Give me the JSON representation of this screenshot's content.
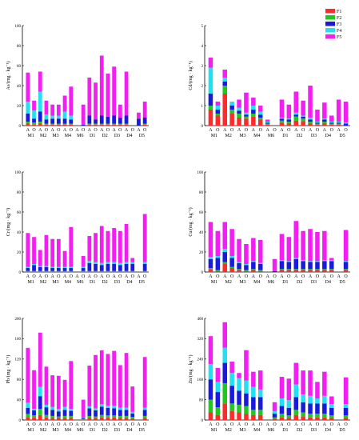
{
  "legend": {
    "entries": [
      {
        "name": "F1",
        "color": "#ff2a2a"
      },
      {
        "name": "F2",
        "color": "#1fc81f"
      },
      {
        "name": "F3",
        "color": "#1a1adc"
      },
      {
        "name": "F4",
        "color": "#22e0f0"
      },
      {
        "name": "F5",
        "color": "#f21ef2"
      }
    ]
  },
  "chart_data": [
    {
      "type": "bar",
      "stacked": true,
      "ylabel": "As/(mg · kg⁻¹)",
      "ylim": [
        0,
        100
      ],
      "yticks": [
        0,
        20,
        40,
        60,
        80,
        100
      ],
      "bar_labels": [
        "A",
        "O",
        "A",
        "O",
        "A",
        "O",
        "A",
        "O",
        "A",
        "O",
        "A",
        "O",
        "A",
        "O",
        "A",
        "O",
        "A",
        "O",
        "A",
        "O"
      ],
      "group_labels": [
        "M1",
        "M2",
        "M3",
        "M4",
        "M6",
        "D1",
        "D2",
        "D3",
        "D4",
        "D5"
      ],
      "series": [
        {
          "name": "F1",
          "values": [
            2,
            1,
            2,
            1,
            1,
            1,
            1,
            1,
            0,
            0,
            1,
            1,
            1,
            1,
            1,
            1,
            1,
            0,
            0,
            1
          ]
        },
        {
          "name": "F2",
          "values": [
            2,
            2,
            2,
            1,
            1,
            1,
            1,
            1,
            0,
            0,
            1,
            1,
            1,
            1,
            1,
            1,
            1,
            0,
            0,
            1
          ]
        },
        {
          "name": "F3",
          "values": [
            8,
            4,
            10,
            4,
            5,
            5,
            5,
            4,
            0,
            1,
            8,
            4,
            8,
            7,
            8,
            6,
            8,
            0,
            7,
            6
          ]
        },
        {
          "name": "F4",
          "values": [
            12,
            8,
            20,
            5,
            3,
            3,
            7,
            4,
            0,
            0,
            0,
            0,
            0,
            0,
            0,
            0,
            0,
            0,
            0,
            0
          ]
        },
        {
          "name": "F5",
          "values": [
            29,
            10,
            20,
            14,
            11,
            11,
            16,
            29,
            0,
            20,
            38,
            37,
            60,
            43,
            49,
            13,
            44,
            0,
            6,
            16
          ]
        }
      ]
    },
    {
      "type": "bar",
      "stacked": true,
      "ylabel": "Cd/(mg · kg⁻¹)",
      "ylim": [
        0,
        5
      ],
      "yticks": [
        0,
        1,
        2,
        3,
        4,
        5
      ],
      "bar_labels": [
        "A",
        "O",
        "A",
        "O",
        "A",
        "O",
        "A",
        "O",
        "A",
        "O",
        "A",
        "O",
        "A",
        "O",
        "A",
        "O",
        "A",
        "O",
        "A",
        "O"
      ],
      "group_labels": [
        "M1",
        "M2",
        "M3",
        "M4",
        "M6",
        "D1",
        "D2",
        "D3",
        "D4",
        "D5"
      ],
      "series": [
        {
          "name": "F1",
          "values": [
            0.8,
            0.5,
            1.6,
            0.6,
            0.4,
            0.35,
            0.45,
            0.3,
            0.05,
            0,
            0.15,
            0.1,
            0.25,
            0.2,
            0.1,
            0.05,
            0.1,
            0.05,
            0.05,
            0
          ]
        },
        {
          "name": "F2",
          "values": [
            0.2,
            0.1,
            0.4,
            0.2,
            0.2,
            0.1,
            0.15,
            0.1,
            0.05,
            0,
            0.1,
            0.1,
            0.2,
            0.15,
            0.1,
            0.05,
            0.1,
            0.05,
            0.05,
            0
          ]
        },
        {
          "name": "F3",
          "values": [
            0.6,
            0.2,
            0.2,
            0.2,
            0.15,
            0.1,
            0.2,
            0.15,
            0.05,
            0,
            0.1,
            0.1,
            0.1,
            0.1,
            0.1,
            0.05,
            0.1,
            0.05,
            0.05,
            0.1
          ]
        },
        {
          "name": "F4",
          "values": [
            1.3,
            0.2,
            0.2,
            0.2,
            0.15,
            0.1,
            0.2,
            0.15,
            0.05,
            0,
            0.05,
            0.05,
            0.1,
            0.05,
            0.1,
            0.05,
            0.05,
            0.05,
            0.05,
            0.05
          ]
        },
        {
          "name": "F5",
          "values": [
            0.5,
            0.2,
            0.4,
            0.0,
            0.4,
            1.0,
            0.4,
            0.3,
            0.1,
            0,
            0.9,
            0.7,
            1.05,
            0.75,
            1.6,
            0.6,
            0.8,
            0.3,
            1.1,
            1.05
          ]
        }
      ]
    },
    {
      "type": "bar",
      "stacked": true,
      "ylabel": "Cr/(mg · kg⁻¹)",
      "ylim": [
        0,
        100
      ],
      "yticks": [
        0,
        20,
        40,
        60,
        80,
        100
      ],
      "bar_labels": [
        "A",
        "O",
        "A",
        "O",
        "A",
        "O",
        "A",
        "O",
        "A",
        "O",
        "A",
        "O",
        "A",
        "O",
        "A",
        "O",
        "A",
        "O",
        "A",
        "O"
      ],
      "group_labels": [
        "M1",
        "M2",
        "M3",
        "M4",
        "M6",
        "D1",
        "D2",
        "D3",
        "D4",
        "D5"
      ],
      "series": [
        {
          "name": "F1",
          "values": [
            0.5,
            0.5,
            0.5,
            0.5,
            0.5,
            0.5,
            0.5,
            0.5,
            0,
            0.5,
            0.5,
            0.5,
            0.5,
            0.5,
            0.5,
            0.5,
            0.5,
            0.5,
            0,
            0.5
          ]
        },
        {
          "name": "F2",
          "values": [
            0.5,
            0.5,
            0.5,
            0.5,
            0.5,
            0.5,
            0.5,
            0.5,
            0,
            0.5,
            0.5,
            0.5,
            0.5,
            0.5,
            0.5,
            0.5,
            0.5,
            0.5,
            0,
            0.5
          ]
        },
        {
          "name": "F3",
          "values": [
            3,
            6,
            4,
            4,
            3,
            3,
            3,
            3,
            0,
            3,
            8,
            7,
            6,
            7,
            7,
            6,
            7,
            7,
            0,
            7
          ]
        },
        {
          "name": "F4",
          "values": [
            1,
            1,
            1,
            1,
            1,
            1,
            1,
            1,
            0,
            1,
            2,
            2,
            2,
            2,
            2,
            2,
            2,
            2,
            0,
            2
          ]
        },
        {
          "name": "F5",
          "values": [
            34,
            27,
            16,
            31,
            28,
            28,
            16,
            40,
            0,
            11,
            25,
            29,
            37,
            31,
            34,
            32,
            38,
            4,
            0,
            48
          ]
        }
      ]
    },
    {
      "type": "bar",
      "stacked": true,
      "ylabel": "Cu/(mg · kg⁻¹)",
      "ylim": [
        0,
        100
      ],
      "yticks": [
        0,
        20,
        40,
        60,
        80,
        100
      ],
      "bar_labels": [
        "A",
        "O",
        "A",
        "O",
        "A",
        "O",
        "A",
        "O",
        "A",
        "O",
        "A",
        "O",
        "A",
        "O",
        "A",
        "O",
        "A",
        "O",
        "A",
        "O"
      ],
      "group_labels": [
        "M1",
        "M2",
        "M3",
        "M4",
        "M6",
        "D1",
        "D2",
        "D3",
        "D4",
        "D5"
      ],
      "series": [
        {
          "name": "F1",
          "values": [
            3,
            1,
            8,
            4,
            2,
            1,
            2,
            1,
            0,
            0,
            2,
            2,
            2,
            2,
            2,
            2,
            2,
            2,
            0,
            2
          ]
        },
        {
          "name": "F2",
          "values": [
            1,
            1,
            2,
            1,
            1,
            1,
            1,
            1,
            0,
            0,
            1,
            1,
            1,
            1,
            1,
            1,
            1,
            1,
            0,
            1
          ]
        },
        {
          "name": "F3",
          "values": [
            9,
            12,
            10,
            9,
            6,
            5,
            7,
            6,
            0,
            1,
            8,
            7,
            10,
            8,
            7,
            7,
            8,
            8,
            0,
            7
          ]
        },
        {
          "name": "F4",
          "values": [
            2,
            2,
            3,
            2,
            1,
            1,
            1,
            1,
            0,
            0,
            1,
            1,
            1,
            1,
            1,
            1,
            1,
            1,
            0,
            1
          ]
        },
        {
          "name": "F5",
          "values": [
            35,
            25,
            27,
            27,
            23,
            20,
            23,
            23,
            0,
            12,
            26,
            24,
            37,
            29,
            32,
            29,
            29,
            2,
            0,
            31
          ]
        }
      ]
    },
    {
      "type": "bar",
      "stacked": true,
      "ylabel": "Pb/(mg · kg⁻¹)",
      "ylim": [
        0,
        200
      ],
      "yticks": [
        0,
        40,
        80,
        120,
        160,
        200
      ],
      "bar_labels": [
        "A",
        "O",
        "A",
        "O",
        "A",
        "O",
        "A",
        "O",
        "A",
        "O",
        "A",
        "O",
        "A",
        "O",
        "A",
        "O",
        "A",
        "O",
        "A",
        "O"
      ],
      "group_labels": [
        "M1",
        "M2",
        "M3",
        "M4",
        "M6",
        "D1",
        "D2",
        "D3",
        "D4",
        "D5"
      ],
      "series": [
        {
          "name": "F1",
          "values": [
            6,
            5,
            10,
            5,
            4,
            4,
            4,
            4,
            0,
            1,
            4,
            4,
            5,
            5,
            5,
            4,
            4,
            3,
            0,
            4
          ]
        },
        {
          "name": "F2",
          "values": [
            6,
            4,
            12,
            5,
            4,
            3,
            4,
            4,
            0,
            1,
            4,
            3,
            5,
            4,
            4,
            4,
            4,
            3,
            0,
            4
          ]
        },
        {
          "name": "F3",
          "values": [
            12,
            10,
            25,
            15,
            12,
            10,
            12,
            10,
            0,
            2,
            15,
            12,
            16,
            15,
            14,
            12,
            12,
            7,
            0,
            12
          ]
        },
        {
          "name": "F4",
          "values": [
            10,
            3,
            18,
            5,
            6,
            5,
            6,
            4,
            0,
            1,
            4,
            4,
            5,
            4,
            5,
            4,
            4,
            3,
            0,
            4
          ]
        },
        {
          "name": "F5",
          "values": [
            108,
            76,
            107,
            75,
            62,
            65,
            53,
            94,
            0,
            35,
            80,
            105,
            106,
            102,
            108,
            84,
            108,
            50,
            0,
            100
          ]
        }
      ]
    },
    {
      "type": "bar",
      "stacked": true,
      "ylabel": "Zn/(mg · kg⁻¹)",
      "ylim": [
        0,
        400
      ],
      "yticks": [
        0,
        80,
        160,
        240,
        320,
        400
      ],
      "bar_labels": [
        "A",
        "O",
        "A",
        "O",
        "A",
        "O",
        "A",
        "O",
        "A",
        "O",
        "A",
        "O",
        "A",
        "O",
        "A",
        "O",
        "A",
        "O",
        "A",
        "O"
      ],
      "group_labels": [
        "M1",
        "M2",
        "M3",
        "M4",
        "M6",
        "D1",
        "D2",
        "D3",
        "D4",
        "D5"
      ],
      "series": [
        {
          "name": "F1",
          "values": [
            30,
            20,
            65,
            35,
            30,
            25,
            20,
            20,
            0,
            5,
            10,
            8,
            20,
            15,
            10,
            10,
            10,
            8,
            0,
            8
          ]
        },
        {
          "name": "F2",
          "values": [
            50,
            30,
            80,
            30,
            30,
            30,
            20,
            20,
            0,
            5,
            15,
            10,
            20,
            15,
            15,
            15,
            15,
            10,
            0,
            10
          ]
        },
        {
          "name": "F3",
          "values": [
            80,
            60,
            80,
            70,
            55,
            50,
            50,
            50,
            0,
            15,
            30,
            30,
            50,
            40,
            40,
            40,
            40,
            30,
            0,
            30
          ]
        },
        {
          "name": "F4",
          "values": [
            60,
            40,
            60,
            50,
            50,
            50,
            40,
            30,
            0,
            10,
            30,
            30,
            50,
            30,
            30,
            20,
            30,
            15,
            0,
            15
          ]
        },
        {
          "name": "F5",
          "values": [
            110,
            55,
            100,
            45,
            20,
            120,
            60,
            75,
            0,
            35,
            85,
            85,
            85,
            95,
            100,
            65,
            95,
            30,
            0,
            105
          ]
        }
      ]
    }
  ]
}
